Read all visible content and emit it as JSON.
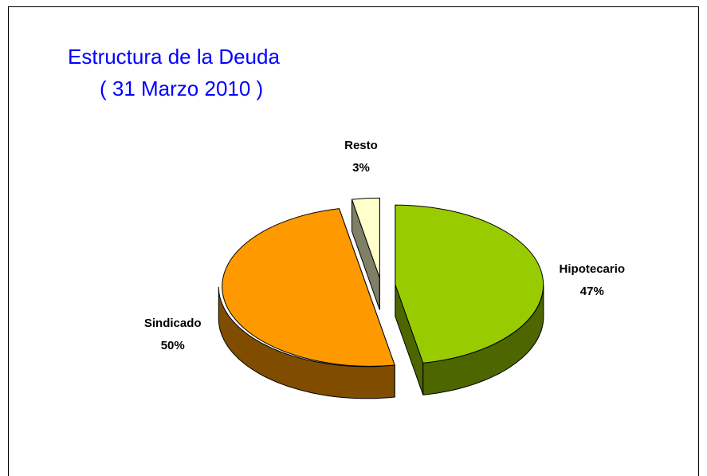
{
  "chart_data": {
    "type": "pie3d",
    "title": "Estructura de la Deuda",
    "subtitle": "( 31 Marzo 2010 )",
    "categories": [
      "Hipotecario",
      "Sindicado",
      "Resto"
    ],
    "values": [
      47,
      50,
      3
    ],
    "value_labels": [
      "47%",
      "50%",
      "3%"
    ],
    "colors": [
      "#99cc00",
      "#ff9900",
      "#ffffcc"
    ]
  }
}
